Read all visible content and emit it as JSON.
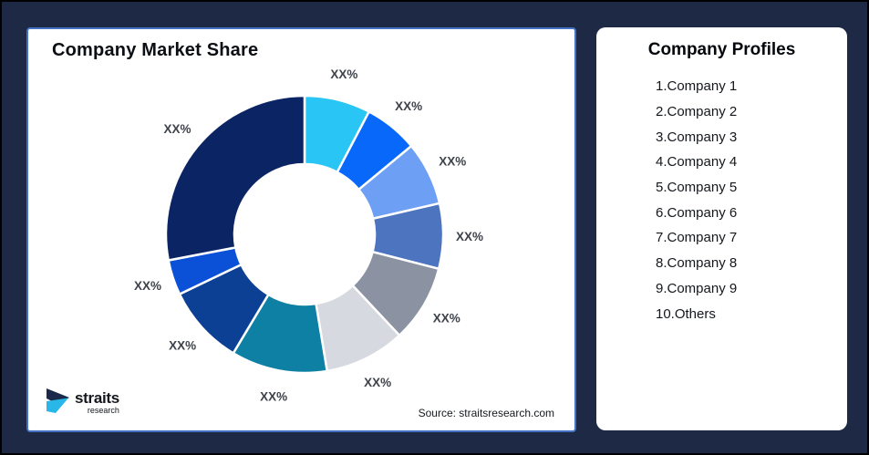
{
  "page": {
    "background_color": "#1e2a45",
    "panel_border_color": "#4472c4"
  },
  "chart_panel": {
    "title": "Company Market Share",
    "source": "Source: straitsresearch.com",
    "logo": {
      "name": "straits",
      "sub": "research",
      "dark_color": "#1b2a4a",
      "cyan_color": "#29b7e8"
    }
  },
  "chart_data": {
    "type": "pie",
    "subtype": "donut",
    "title": "Company Market Share",
    "start_angle_deg": 0,
    "direction": "clockwise",
    "legend_position": "none",
    "data_labels": "outside",
    "segments": [
      {
        "label": "XX%",
        "value": 7.7,
        "color": "#29c5f4"
      },
      {
        "label": "XX%",
        "value": 6.3,
        "color": "#0768fa"
      },
      {
        "label": "XX%",
        "value": 7.4,
        "color": "#6d9ff5"
      },
      {
        "label": "XX%",
        "value": 7.6,
        "color": "#4c74bf"
      },
      {
        "label": "XX%",
        "value": 9.0,
        "color": "#8b92a1"
      },
      {
        "label": "XX%",
        "value": 9.4,
        "color": "#d6d9df"
      },
      {
        "label": "XX%",
        "value": 11.2,
        "color": "#0e80a4"
      },
      {
        "label": "XX%",
        "value": 9.3,
        "color": "#0c4095"
      },
      {
        "label": "XX%",
        "value": 4.1,
        "color": "#0b51d8"
      },
      {
        "label": "XX%",
        "value": 28.0,
        "color": "#0b2463"
      }
    ]
  },
  "profiles_panel": {
    "title": "Company Profiles",
    "items": [
      "1.Company 1",
      "2.Company 2",
      "3.Company 3",
      "4.Company 4",
      "5.Company 5",
      "6.Company 6",
      "7.Company 7",
      "8.Company 8",
      "9.Company 9",
      "10.Others"
    ]
  }
}
